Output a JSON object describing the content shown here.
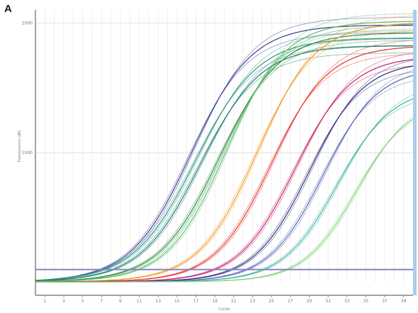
{
  "panel_label": "A",
  "chart_data": {
    "type": "line",
    "title": "",
    "xlabel": "Cycles",
    "ylabel": "Fluorescence (dR)",
    "xlim": [
      0,
      40
    ],
    "ylim": [
      0,
      2100
    ],
    "y_ticks": [
      {
        "value": 1000,
        "label": "1000"
      },
      {
        "value": 2000,
        "label": "2000"
      }
    ],
    "x_ticks": [
      1,
      3,
      5,
      7,
      9,
      11,
      13,
      15,
      17,
      19,
      21,
      23,
      25,
      27,
      29,
      31,
      33,
      35,
      37,
      39
    ],
    "grid": true,
    "legend": "none",
    "threshold": 100,
    "series": [
      {
        "color": "#3c3f8f",
        "midpoint": 16.5,
        "slope": 3.2,
        "plateau": 1980
      },
      {
        "color": "#2f9a86",
        "midpoint": 17.0,
        "slope": 3.3,
        "plateau": 1880
      },
      {
        "color": "#1c7e6e",
        "midpoint": 17.5,
        "slope": 3.2,
        "plateau": 1820
      },
      {
        "color": "#2b8a3e",
        "midpoint": 19.5,
        "slope": 3.2,
        "plateau": 1920
      },
      {
        "color": "#5fbf6e",
        "midpoint": 20.2,
        "slope": 3.1,
        "plateau": 2010
      },
      {
        "color": "#f09a22",
        "midpoint": 23.5,
        "slope": 3.1,
        "plateau": 2000
      },
      {
        "color": "#e4322a",
        "midpoint": 25.0,
        "slope": 3.0,
        "plateau": 1820
      },
      {
        "color": "#c81e6a",
        "midpoint": 27.5,
        "slope": 3.0,
        "plateau": 1740
      },
      {
        "color": "#2a2f7d",
        "midpoint": 29.0,
        "slope": 2.9,
        "plateau": 1700
      },
      {
        "color": "#5a63b8",
        "midpoint": 30.5,
        "slope": 2.9,
        "plateau": 1650
      },
      {
        "color": "#3bb3a0",
        "midpoint": 32.0,
        "slope": 2.9,
        "plateau": 1500
      },
      {
        "color": "#7fcf78",
        "midpoint": 34.0,
        "slope": 2.8,
        "plateau": 1400
      }
    ],
    "colors": {
      "background": "#ffffff",
      "grid": "#e4e4e4",
      "axis": "#4a4a4a",
      "threshold": "#8a86c2",
      "right_edge": "#a9cdea"
    }
  }
}
